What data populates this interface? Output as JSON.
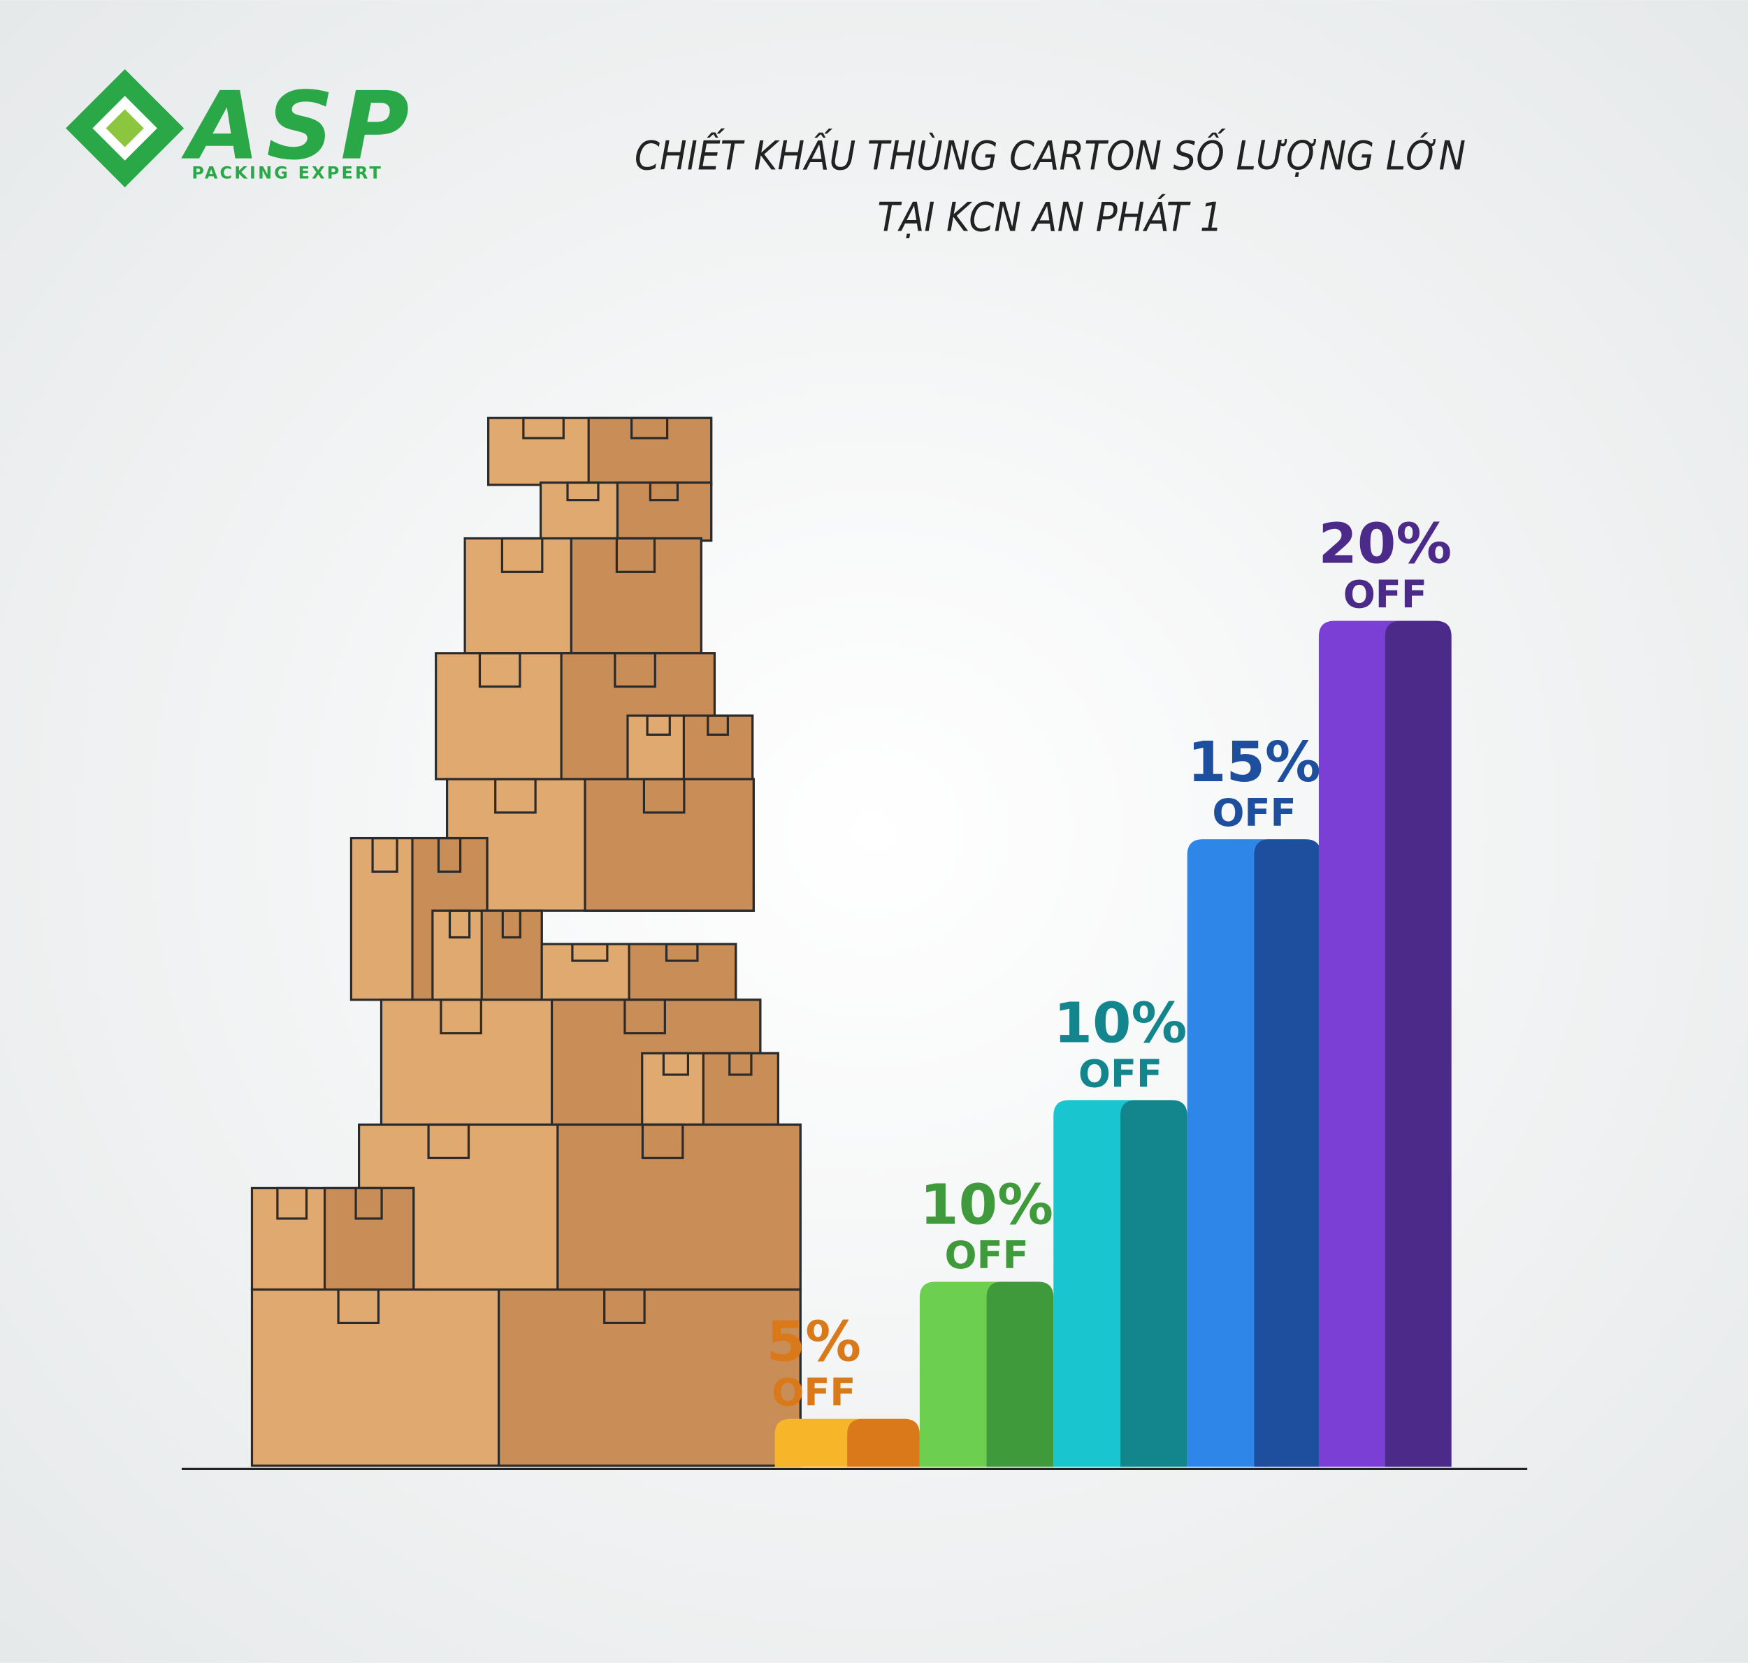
{
  "logo": {
    "name": "ASP",
    "tagline": "PACKING EXPERT",
    "color": "#2aa847"
  },
  "title": [
    "CHIẾT KHẤU THÙNG CARTON SỐ LƯỢNG LỚN",
    "TẠI KCN AN PHÁT 1"
  ],
  "steps": [
    {
      "discount": "5%",
      "label": "OFF",
      "color": "#f7b52a",
      "shade": "#d9791a"
    },
    {
      "discount": "10%",
      "label": "OFF",
      "color": "#6ccf4f",
      "shade": "#3e9a3a"
    },
    {
      "discount": "10%",
      "label": "OFF",
      "color": "#19c6cf",
      "shade": "#12858d"
    },
    {
      "discount": "15%",
      "label": "OFF",
      "color": "#2e86e8",
      "shade": "#1e4f9e"
    },
    {
      "discount": "20%",
      "label": "OFF",
      "color": "#7b3fd6",
      "shade": "#4b2a8a"
    }
  ]
}
